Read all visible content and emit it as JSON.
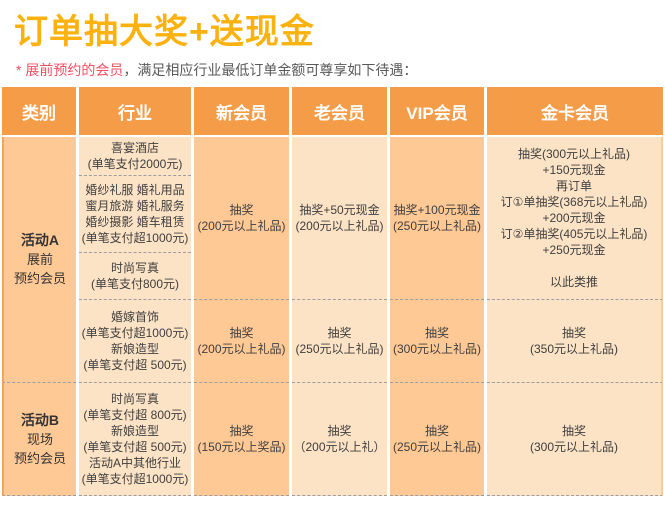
{
  "page": {
    "title": "订单抽大奖+送现金",
    "note": {
      "highlight": "* 展前预约的会员",
      "rest": "，满足相应行业最低订单金额可尊享如下待遇："
    }
  },
  "colors": {
    "title": "#FBB10E",
    "note_highlight": "#F34F63",
    "note_text": "#595959",
    "header_bg": "#F59C49",
    "header_text": "#FFFFFF",
    "column_medium_bg": "#FFC996",
    "column_light_bg": "#FCE3C6",
    "cell_text": "#3F3F3F",
    "dashed_divider": "#9E9E9E"
  },
  "table": {
    "headers": {
      "category": "类别",
      "industry": "行业",
      "new_member": "新会员",
      "old_member": "老会员",
      "vip_member": "VIP会员",
      "gold_member": "金卡会员"
    },
    "categories": {
      "a": {
        "title": "活动A",
        "subtitle": [
          "展前",
          "预约会员"
        ]
      },
      "b": {
        "title": "活动B",
        "subtitle": [
          "现场",
          "预约会员"
        ]
      }
    },
    "industry": {
      "a1": [
        "喜宴酒店",
        "(单笔支付2000元)"
      ],
      "a2": [
        "婚纱礼服 婚礼用品",
        "蜜月旅游 婚礼服务",
        "婚纱摄影 婚车租赁",
        "(单笔支付超1000元)"
      ],
      "a3": [
        "时尚写真",
        "(单笔支付800元)"
      ],
      "a4": [
        "婚嫁首饰",
        "(单笔支付超1000元)",
        "新娘造型",
        "(单笔支付超 500元)"
      ],
      "b": [
        "时尚写真",
        "(单笔支付超 800元)",
        "新娘造型",
        "(单笔支付超 500元)",
        "活动A中其他行业",
        "(单笔支付超1000元)"
      ]
    },
    "new_member": {
      "a_main": [
        "抽奖",
        "(200元以上礼品)"
      ],
      "a4": [
        "抽奖",
        "(200元以上礼品)"
      ],
      "b": [
        "抽奖",
        "(150元以上奖品)"
      ]
    },
    "old_member": {
      "a_main": [
        "抽奖+50元现金",
        "(200元以上礼品)"
      ],
      "a4": [
        "抽奖",
        "(250元以上礼品)"
      ],
      "b": [
        "抽奖",
        "（200元以上礼）"
      ]
    },
    "vip_member": {
      "a_main": [
        "抽奖+100元现金",
        "(250元以上礼品)"
      ],
      "a4": [
        "抽奖",
        "(300元以上礼品)"
      ],
      "b": [
        "抽奖",
        "(250元以上礼品)"
      ]
    },
    "gold_member": {
      "a_main": [
        "抽奖(300元以上礼品)",
        "+150元现金",
        "再订单",
        "订①单抽奖(368元以上礼品)",
        "+200元现金",
        "订②单抽奖(405元以上礼品)",
        "+250元现金",
        "",
        "以此类推"
      ],
      "a4": [
        "抽奖",
        "(350元以上礼品)"
      ],
      "b": [
        "抽奖",
        "(300元以上礼品)"
      ]
    }
  }
}
